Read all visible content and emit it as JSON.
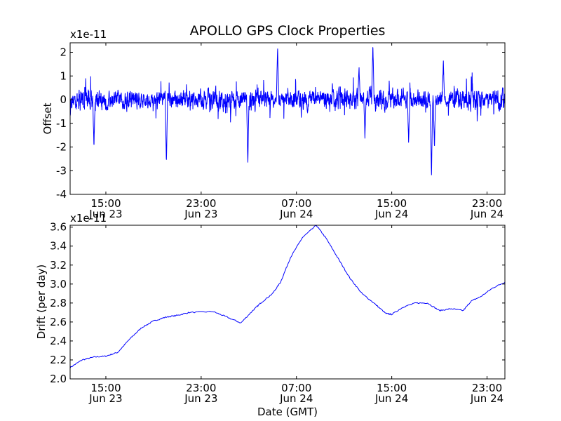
{
  "chart_data": [
    {
      "type": "line",
      "title": "APOLLO GPS Clock Properties",
      "ylabel": "Offset",
      "scale_label": "x1e-11",
      "xlim": [
        "2011-06-23 12:00",
        "2011-06-25 00:30"
      ],
      "ylim": [
        -4,
        2.4
      ],
      "yticks": [
        -4,
        -3,
        -2,
        -1,
        0,
        1,
        2
      ],
      "xticks": [
        {
          "time": "15:00",
          "date": "Jun 23"
        },
        {
          "time": "23:00",
          "date": "Jun 23"
        },
        {
          "time": "07:00",
          "date": "Jun 24"
        },
        {
          "time": "15:00",
          "date": "Jun 24"
        },
        {
          "time": "23:00",
          "date": "Jun 24"
        }
      ],
      "series": [
        {
          "color": "#0000ff",
          "features": [
            {
              "x": "2011-06-23 14:00",
              "y": -2.0
            },
            {
              "x": "2011-06-23 20:05",
              "y": -2.7
            },
            {
              "x": "2011-06-24 02:55",
              "y": -2.75
            },
            {
              "x": "2011-06-24 05:25",
              "y": 2.2
            },
            {
              "x": "2011-06-24 12:15",
              "y": 1.4
            },
            {
              "x": "2011-06-24 12:45",
              "y": -1.55
            },
            {
              "x": "2011-06-24 13:25",
              "y": 2.4
            },
            {
              "x": "2011-06-24 16:25",
              "y": -1.8
            },
            {
              "x": "2011-06-24 18:20",
              "y": -3.3
            },
            {
              "x": "2011-06-24 18:35",
              "y": -2.0
            },
            {
              "x": "2011-06-24 19:20",
              "y": 1.6
            }
          ]
        }
      ]
    },
    {
      "type": "line",
      "xlabel": "Date (GMT)",
      "ylabel": "Drift (per day)",
      "scale_label": "x1e-11",
      "xlim": [
        "2011-06-23 12:00",
        "2011-06-25 00:30"
      ],
      "ylim": [
        2.0,
        3.62
      ],
      "yticks": [
        "2.0",
        "2.2",
        "2.4",
        "2.6",
        "2.8",
        "3.0",
        "3.2",
        "3.4",
        "3.6"
      ],
      "xticks": [
        {
          "time": "15:00",
          "date": "Jun 23"
        },
        {
          "time": "23:00",
          "date": "Jun 23"
        },
        {
          "time": "07:00",
          "date": "Jun 24"
        },
        {
          "time": "15:00",
          "date": "Jun 24"
        },
        {
          "time": "23:00",
          "date": "Jun 24"
        }
      ],
      "series": [
        {
          "color": "#0000ff",
          "points": [
            {
              "x": "2011-06-23 12:00",
              "y": 2.12
            },
            {
              "x": "2011-06-23 13:00",
              "y": 2.2
            },
            {
              "x": "2011-06-23 14:00",
              "y": 2.23
            },
            {
              "x": "2011-06-23 15:00",
              "y": 2.24
            },
            {
              "x": "2011-06-23 16:00",
              "y": 2.28
            },
            {
              "x": "2011-06-23 17:00",
              "y": 2.42
            },
            {
              "x": "2011-06-23 18:00",
              "y": 2.54
            },
            {
              "x": "2011-06-23 19:00",
              "y": 2.61
            },
            {
              "x": "2011-06-23 20:00",
              "y": 2.65
            },
            {
              "x": "2011-06-23 21:00",
              "y": 2.67
            },
            {
              "x": "2011-06-23 22:00",
              "y": 2.7
            },
            {
              "x": "2011-06-24 00:00",
              "y": 2.71
            },
            {
              "x": "2011-06-24 01:00",
              "y": 2.66
            },
            {
              "x": "2011-06-24 02:20",
              "y": 2.59
            },
            {
              "x": "2011-06-24 03:20",
              "y": 2.72
            },
            {
              "x": "2011-06-24 04:00",
              "y": 2.8
            },
            {
              "x": "2011-06-24 05:00",
              "y": 2.9
            },
            {
              "x": "2011-06-24 05:40",
              "y": 3.02
            },
            {
              "x": "2011-06-24 06:30",
              "y": 3.28
            },
            {
              "x": "2011-06-24 07:30",
              "y": 3.49
            },
            {
              "x": "2011-06-24 08:40",
              "y": 3.62
            },
            {
              "x": "2011-06-24 09:30",
              "y": 3.48
            },
            {
              "x": "2011-06-24 10:30",
              "y": 3.27
            },
            {
              "x": "2011-06-24 11:30",
              "y": 3.06
            },
            {
              "x": "2011-06-24 12:30",
              "y": 2.9
            },
            {
              "x": "2011-06-24 13:30",
              "y": 2.8
            },
            {
              "x": "2011-06-24 14:30",
              "y": 2.69
            },
            {
              "x": "2011-06-24 15:00",
              "y": 2.68
            },
            {
              "x": "2011-06-24 16:00",
              "y": 2.76
            },
            {
              "x": "2011-06-24 17:00",
              "y": 2.8
            },
            {
              "x": "2011-06-24 18:00",
              "y": 2.8
            },
            {
              "x": "2011-06-24 19:00",
              "y": 2.72
            },
            {
              "x": "2011-06-24 20:00",
              "y": 2.74
            },
            {
              "x": "2011-06-24 21:00",
              "y": 2.72
            },
            {
              "x": "2011-06-24 21:40",
              "y": 2.82
            },
            {
              "x": "2011-06-24 22:30",
              "y": 2.87
            },
            {
              "x": "2011-06-24 23:30",
              "y": 2.96
            },
            {
              "x": "2011-06-25 00:30",
              "y": 3.02
            }
          ]
        }
      ]
    }
  ]
}
